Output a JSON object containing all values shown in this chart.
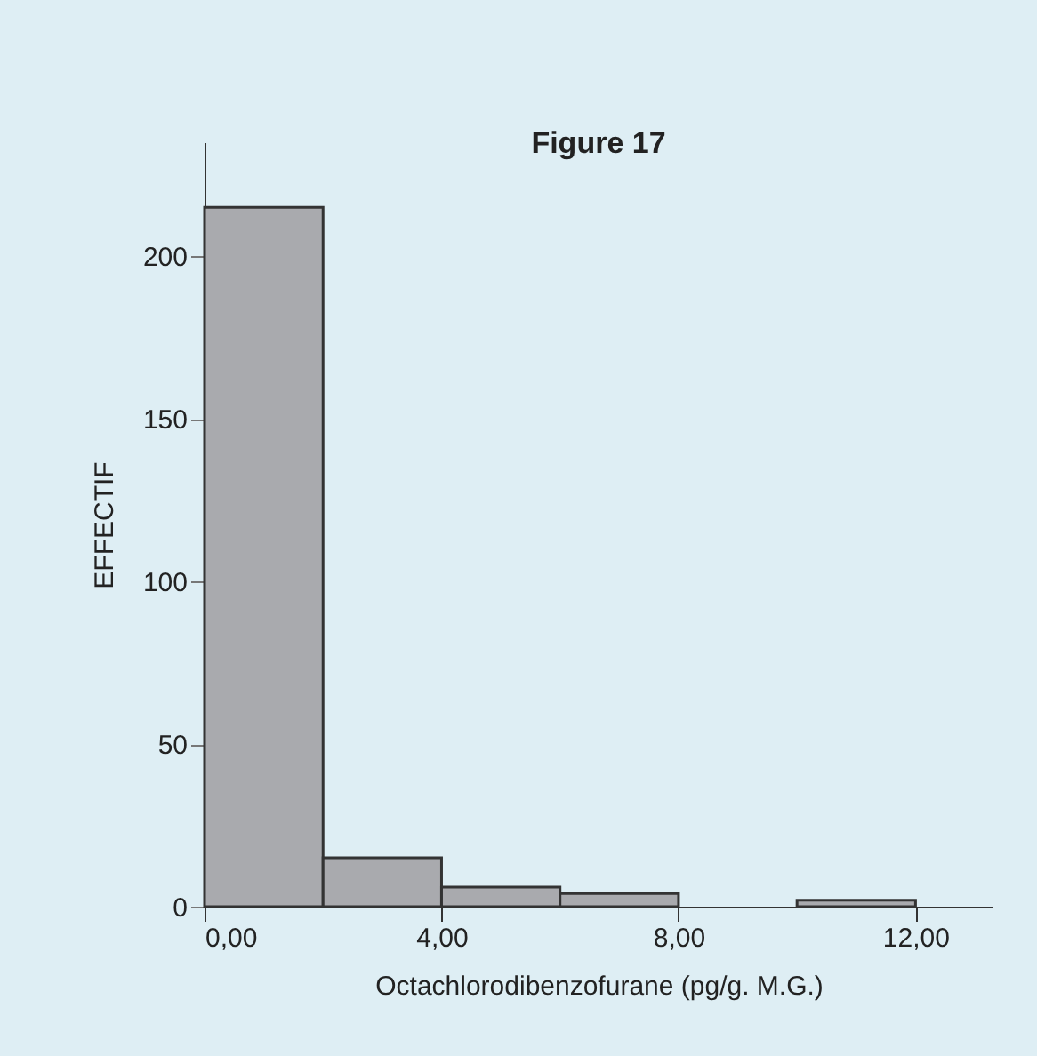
{
  "chart_data": {
    "type": "histogram",
    "title": "Figure 17",
    "xlabel": "Octachlorodibenzofurane (pg/g. M.G.)",
    "ylabel": "EFFECTIF",
    "bins": [
      0,
      2,
      4,
      6,
      8,
      10,
      12
    ],
    "values": [
      215,
      15,
      6,
      4,
      0,
      2
    ],
    "color": "#a9aaae",
    "xlim": [
      0,
      13.3
    ],
    "xticks": [
      {
        "value": 0,
        "label": "0,00"
      },
      {
        "value": 4,
        "label": "4,00"
      },
      {
        "value": 8,
        "label": "8,00"
      },
      {
        "value": 12,
        "label": "12,00"
      }
    ],
    "ylim": [
      0,
      235
    ],
    "yticks": [
      0,
      50,
      100,
      150,
      200
    ],
    "grid": false
  }
}
